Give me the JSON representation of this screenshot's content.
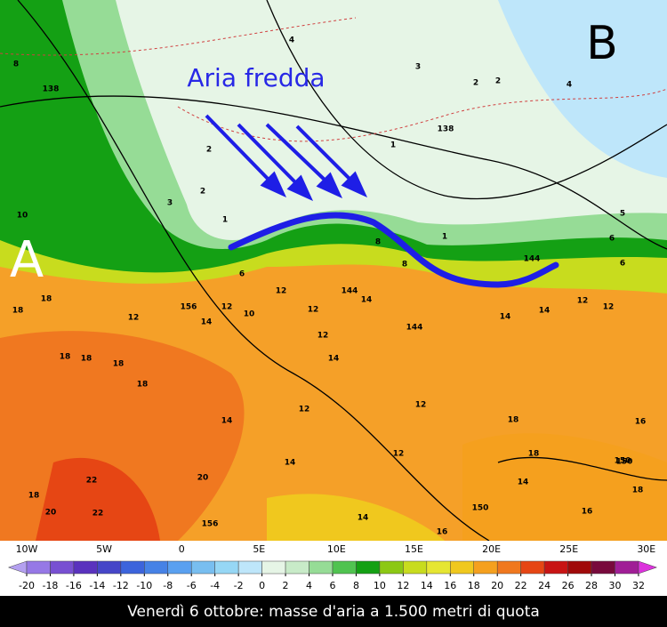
{
  "map": {
    "pressure_high": "A",
    "pressure_low": "B",
    "annotation": "Aria fredda",
    "caption": "Venerdì 6 ottobre: masse d'aria a 1.500 metri di quota",
    "longitudes": [
      "10W",
      "5W",
      "0",
      "5E",
      "10E",
      "15E",
      "20E",
      "25E",
      "30E"
    ],
    "labels": [
      "8",
      "138",
      "10",
      "18",
      "18",
      "12",
      "18",
      "18",
      "18",
      "14",
      "18",
      "22",
      "22",
      "20",
      "18",
      "20",
      "156",
      "14",
      "12",
      "14",
      "12",
      "14",
      "16",
      "150",
      "14",
      "18",
      "18",
      "16",
      "150",
      "16",
      "12",
      "14",
      "144",
      "12",
      "12",
      "14",
      "10",
      "12",
      "156",
      "6",
      "144",
      "8",
      "8",
      "1",
      "2",
      "3",
      "4",
      "2",
      "1",
      "138",
      "1",
      "2",
      "2",
      "3",
      "5",
      "6",
      "150",
      "4",
      "6",
      "144",
      "12",
      "12",
      "14",
      "14",
      "18",
      "12"
    ],
    "colorbar": {
      "ticks": [
        -20,
        -18,
        -16,
        -14,
        -12,
        -10,
        -8,
        -6,
        -4,
        -2,
        0,
        2,
        4,
        6,
        8,
        10,
        12,
        14,
        16,
        18,
        20,
        22,
        24,
        26,
        28,
        30,
        32
      ],
      "colors": [
        "#b4a0f0",
        "#9678e6",
        "#7850d2",
        "#5a32be",
        "#4646c8",
        "#3c64dc",
        "#4682e6",
        "#5aa0f0",
        "#78bef0",
        "#96d7f5",
        "#bee6fa",
        "#e6f5e6",
        "#c8ebc8",
        "#96dc96",
        "#50c350",
        "#14a014",
        "#8cc814",
        "#c8dc1e",
        "#e6e632",
        "#f0c81e",
        "#f5a01e",
        "#f0781e",
        "#e64614",
        "#c81414",
        "#a00a0a",
        "#780a3c",
        "#a01e96",
        "#dc32dc"
      ]
    }
  }
}
